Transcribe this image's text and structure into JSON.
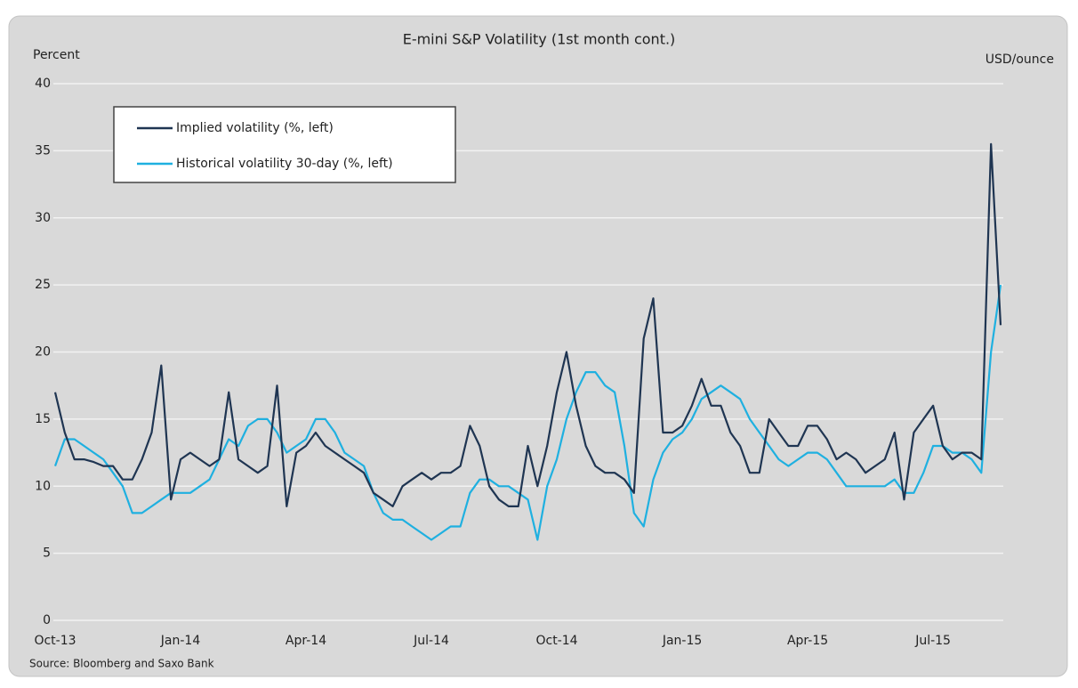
{
  "chart_data": {
    "type": "line",
    "title": "E-mini S&P Volatility (1st month cont.)",
    "ylabel": "Percent",
    "y2label": "USD/ounce",
    "source": "Source: Bloomberg and Saxo Bank",
    "categories": [
      "Oct-13",
      null,
      null,
      null,
      null,
      null,
      null,
      null,
      null,
      null,
      null,
      null,
      null,
      "Jan-14",
      null,
      null,
      null,
      null,
      null,
      null,
      null,
      null,
      null,
      null,
      null,
      null,
      "Apr-14",
      null,
      null,
      null,
      null,
      null,
      null,
      null,
      null,
      null,
      null,
      null,
      null,
      "Jul-14",
      null,
      null,
      null,
      null,
      null,
      null,
      null,
      null,
      null,
      null,
      null,
      null,
      "Oct-14",
      null,
      null,
      null,
      null,
      null,
      null,
      null,
      null,
      null,
      null,
      null,
      null,
      "Jan-15",
      null,
      null,
      null,
      null,
      null,
      null,
      null,
      null,
      null,
      null,
      null,
      null,
      "Apr-15",
      null,
      null,
      null,
      null,
      null,
      null,
      null,
      null,
      null,
      null,
      null,
      null,
      "Jul-15",
      null,
      null,
      null,
      null,
      null,
      null,
      null
    ],
    "series": [
      {
        "name": "Implied volatility (%, left)",
        "color": "#1f3552",
        "values": [
          17,
          14,
          12,
          12,
          11.8,
          11.5,
          11.5,
          10.5,
          10.5,
          12,
          14,
          19,
          9,
          12,
          12.5,
          12,
          11.5,
          12,
          17,
          12,
          11.5,
          11,
          11.5,
          17.5,
          8.5,
          12.5,
          13,
          14,
          13,
          12.5,
          12,
          11.5,
          11,
          9.5,
          9,
          8.5,
          10,
          10.5,
          11,
          10.5,
          11,
          11,
          11.5,
          14.5,
          13,
          10,
          9,
          8.5,
          8.5,
          13,
          10,
          13,
          17,
          20,
          16,
          13,
          11.5,
          11,
          11,
          10.5,
          9.5,
          21,
          24,
          14,
          14,
          14.5,
          16,
          18,
          16,
          16,
          14,
          13,
          11,
          11,
          15,
          14,
          13,
          13,
          14.5,
          14.5,
          13.5,
          12,
          12.5,
          12,
          11,
          11.5,
          12,
          14,
          9,
          14,
          15,
          16,
          13,
          12,
          12.5,
          12.5,
          12,
          35.5,
          22
        ]
      },
      {
        "name": "Historical volatility 30-day (%, left)",
        "color": "#1fb0e0",
        "values": [
          11.5,
          13.5,
          13.5,
          13,
          12.5,
          12,
          11,
          10,
          8,
          8,
          8.5,
          9,
          9.5,
          9.5,
          9.5,
          10,
          10.5,
          12,
          13.5,
          13,
          14.5,
          15,
          15,
          14,
          12.5,
          13,
          13.5,
          15,
          15,
          14,
          12.5,
          12,
          11.5,
          9.5,
          8,
          7.5,
          7.5,
          7,
          6.5,
          6,
          6.5,
          7,
          7,
          9.5,
          10.5,
          10.5,
          10,
          10,
          9.5,
          9,
          6,
          10,
          12,
          15,
          17,
          18.5,
          18.5,
          17.5,
          17,
          13,
          8,
          7,
          10.5,
          12.5,
          13.5,
          14,
          15,
          16.5,
          17,
          17.5,
          17,
          16.5,
          15,
          14,
          13,
          12,
          11.5,
          12,
          12.5,
          12.5,
          12,
          11,
          10,
          10,
          10,
          10,
          10,
          10.5,
          9.5,
          9.5,
          11,
          13,
          13,
          12.5,
          12.5,
          12,
          11,
          20,
          25
        ]
      }
    ],
    "ylim": [
      0,
      40
    ],
    "yticks": [
      0,
      5,
      10,
      15,
      20,
      25,
      30,
      35,
      40
    ],
    "grid": true,
    "legend": "upper left"
  }
}
